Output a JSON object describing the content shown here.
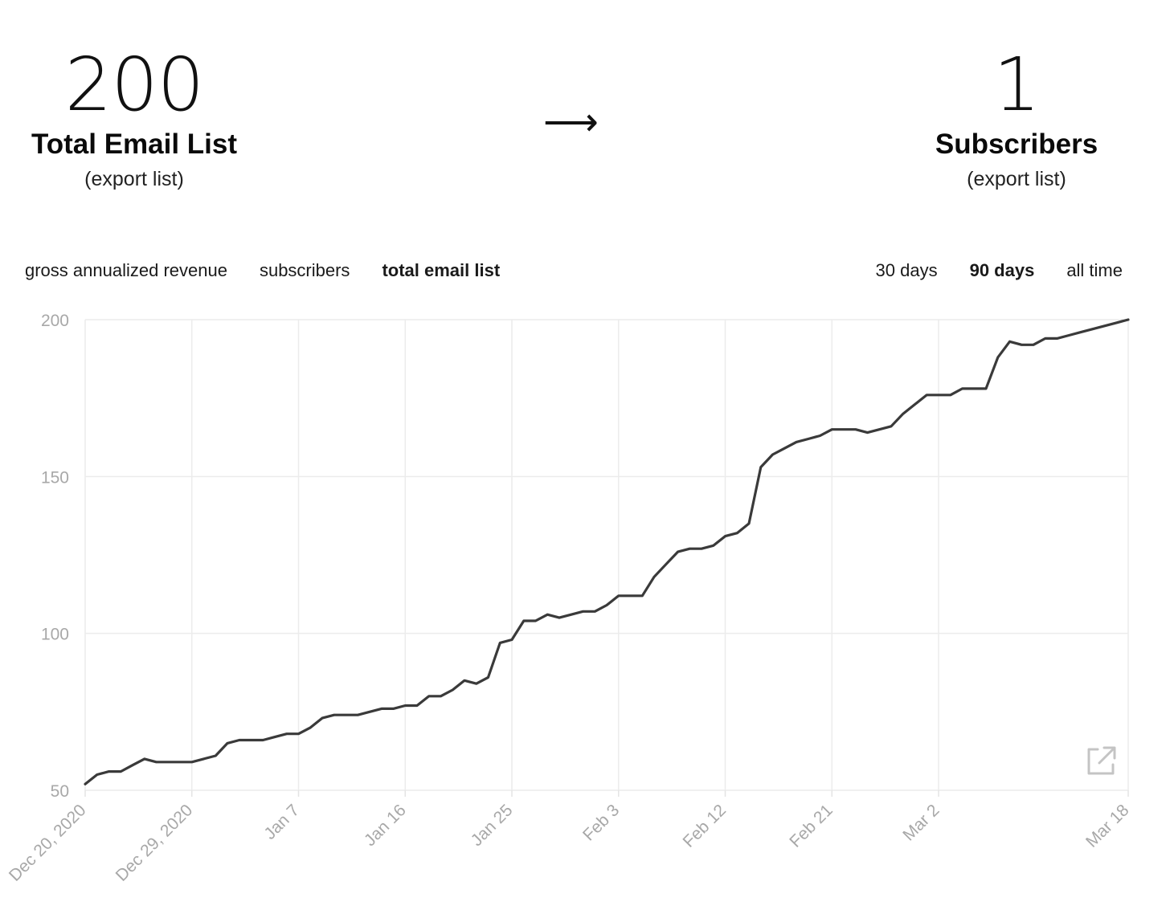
{
  "header": {
    "left_stat": {
      "value": "200",
      "label": "Total Email List",
      "link": "(export list)"
    },
    "arrow": "⟶",
    "right_stat": {
      "value": "1",
      "label": "Subscribers",
      "link": "(export list)"
    }
  },
  "metric_tabs": [
    {
      "label": "gross annualized revenue",
      "active": false
    },
    {
      "label": "subscribers",
      "active": false
    },
    {
      "label": "total email list",
      "active": true
    }
  ],
  "range_tabs": [
    {
      "label": "30 days",
      "active": false
    },
    {
      "label": "90 days",
      "active": true
    },
    {
      "label": "all time",
      "active": false
    }
  ],
  "expand_icon": "external-link-icon",
  "chart_data": {
    "type": "line",
    "x_axis": {
      "type": "date",
      "min": "2020-12-20",
      "max": "2021-03-18"
    },
    "y_axis": {
      "min": 50,
      "max": 200,
      "ticks": [
        50,
        100,
        150,
        200
      ]
    },
    "x_ticks": [
      {
        "date": "2020-12-20",
        "label": "Dec 20, 2020"
      },
      {
        "date": "2020-12-29",
        "label": "Dec 29, 2020"
      },
      {
        "date": "2021-01-07",
        "label": "Jan 7"
      },
      {
        "date": "2021-01-16",
        "label": "Jan 16"
      },
      {
        "date": "2021-01-25",
        "label": "Jan 25"
      },
      {
        "date": "2021-02-03",
        "label": "Feb 3"
      },
      {
        "date": "2021-02-12",
        "label": "Feb 12"
      },
      {
        "date": "2021-02-21",
        "label": "Feb 21"
      },
      {
        "date": "2021-03-02",
        "label": "Mar 2"
      },
      {
        "date": "2021-03-18",
        "label": "Mar 18"
      }
    ],
    "grid": true,
    "line_color": "#3a3a3a",
    "grid_color": "#ececec",
    "series": [
      {
        "points": [
          [
            "2020-12-20",
            52
          ],
          [
            "2020-12-21",
            55
          ],
          [
            "2020-12-22",
            56
          ],
          [
            "2020-12-23",
            56
          ],
          [
            "2020-12-24",
            58
          ],
          [
            "2020-12-25",
            60
          ],
          [
            "2020-12-26",
            59
          ],
          [
            "2020-12-27",
            59
          ],
          [
            "2020-12-28",
            59
          ],
          [
            "2020-12-29",
            59
          ],
          [
            "2020-12-30",
            60
          ],
          [
            "2020-12-31",
            61
          ],
          [
            "2021-01-01",
            65
          ],
          [
            "2021-01-02",
            66
          ],
          [
            "2021-01-03",
            66
          ],
          [
            "2021-01-04",
            66
          ],
          [
            "2021-01-05",
            67
          ],
          [
            "2021-01-06",
            68
          ],
          [
            "2021-01-07",
            68
          ],
          [
            "2021-01-08",
            70
          ],
          [
            "2021-01-09",
            73
          ],
          [
            "2021-01-10",
            74
          ],
          [
            "2021-01-11",
            74
          ],
          [
            "2021-01-12",
            74
          ],
          [
            "2021-01-13",
            75
          ],
          [
            "2021-01-14",
            76
          ],
          [
            "2021-01-15",
            76
          ],
          [
            "2021-01-16",
            77
          ],
          [
            "2021-01-17",
            77
          ],
          [
            "2021-01-18",
            80
          ],
          [
            "2021-01-19",
            80
          ],
          [
            "2021-01-20",
            82
          ],
          [
            "2021-01-21",
            85
          ],
          [
            "2021-01-22",
            84
          ],
          [
            "2021-01-23",
            86
          ],
          [
            "2021-01-24",
            97
          ],
          [
            "2021-01-25",
            98
          ],
          [
            "2021-01-26",
            104
          ],
          [
            "2021-01-27",
            104
          ],
          [
            "2021-01-28",
            106
          ],
          [
            "2021-01-29",
            105
          ],
          [
            "2021-01-30",
            106
          ],
          [
            "2021-01-31",
            107
          ],
          [
            "2021-02-01",
            107
          ],
          [
            "2021-02-02",
            109
          ],
          [
            "2021-02-03",
            112
          ],
          [
            "2021-02-04",
            112
          ],
          [
            "2021-02-05",
            112
          ],
          [
            "2021-02-06",
            118
          ],
          [
            "2021-02-07",
            122
          ],
          [
            "2021-02-08",
            126
          ],
          [
            "2021-02-09",
            127
          ],
          [
            "2021-02-10",
            127
          ],
          [
            "2021-02-11",
            128
          ],
          [
            "2021-02-12",
            131
          ],
          [
            "2021-02-13",
            132
          ],
          [
            "2021-02-14",
            135
          ],
          [
            "2021-02-15",
            153
          ],
          [
            "2021-02-16",
            157
          ],
          [
            "2021-02-17",
            159
          ],
          [
            "2021-02-18",
            161
          ],
          [
            "2021-02-19",
            162
          ],
          [
            "2021-02-20",
            163
          ],
          [
            "2021-02-21",
            165
          ],
          [
            "2021-02-22",
            165
          ],
          [
            "2021-02-23",
            165
          ],
          [
            "2021-02-24",
            164
          ],
          [
            "2021-02-25",
            165
          ],
          [
            "2021-02-26",
            166
          ],
          [
            "2021-02-27",
            170
          ],
          [
            "2021-02-28",
            173
          ],
          [
            "2021-03-01",
            176
          ],
          [
            "2021-03-02",
            176
          ],
          [
            "2021-03-03",
            176
          ],
          [
            "2021-03-04",
            178
          ],
          [
            "2021-03-05",
            178
          ],
          [
            "2021-03-06",
            178
          ],
          [
            "2021-03-07",
            188
          ],
          [
            "2021-03-08",
            193
          ],
          [
            "2021-03-09",
            192
          ],
          [
            "2021-03-10",
            192
          ],
          [
            "2021-03-11",
            194
          ],
          [
            "2021-03-12",
            194
          ],
          [
            "2021-03-13",
            195
          ],
          [
            "2021-03-14",
            196
          ],
          [
            "2021-03-15",
            197
          ],
          [
            "2021-03-16",
            198
          ],
          [
            "2021-03-17",
            199
          ],
          [
            "2021-03-18",
            200
          ]
        ]
      }
    ]
  }
}
